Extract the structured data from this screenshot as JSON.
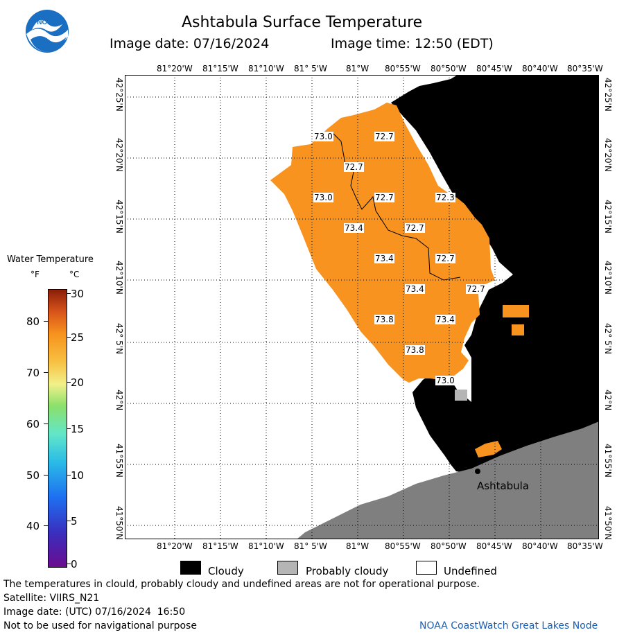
{
  "header": {
    "title": "Ashtabula Surface Temperature",
    "date_label": "Image date: 07/16/2024",
    "time_label": "Image time: 12:50 (EDT)"
  },
  "logo": {
    "text": "NOAA",
    "color": "#1a6fc2"
  },
  "map": {
    "lon_labels": [
      "81°20'W",
      "81°15'W",
      "81°10'W",
      "81° 5'W",
      "81°W",
      "80°55'W",
      "80°50'W",
      "80°45'W",
      "80°40'W",
      "80°35'W"
    ],
    "lat_labels": [
      "42°25'N",
      "42°20'N",
      "42°15'N",
      "42°10'N",
      "42° 5'N",
      "42°N",
      "41°55'N",
      "41°50'N"
    ],
    "temp_labels": [
      "73.0",
      "72.7",
      "72.7",
      "73.0",
      "72.7",
      "72.3",
      "73.4",
      "72.7",
      "73.4",
      "72.7",
      "73.4",
      "72.7",
      "73.8",
      "73.4",
      "73.8",
      "73.0"
    ],
    "city_label": "Ashtabula",
    "colors": {
      "water": "#f7931e",
      "cloud": "#000000",
      "land": "#7f7f7f",
      "probably_cloudy": "#b5b5b5"
    }
  },
  "colorbar": {
    "title": "Water Temperature",
    "unit_f": "°F",
    "unit_c": "°C",
    "f_ticks": [
      "80",
      "70",
      "60",
      "50",
      "40"
    ],
    "c_ticks": [
      "30",
      "25",
      "20",
      "15",
      "10",
      "5",
      "0"
    ]
  },
  "legend": {
    "cloudy": "Cloudy",
    "probably_cloudy": "Probably cloudy",
    "undefined": "Undefined"
  },
  "footer": {
    "disclaimer": "The temperatures in clould, probably cloudy and undefined areas are not for operational purpose.",
    "satellite": "Satellite: VIIRS_N21",
    "utc_date": "Image date: (UTC) 07/16/2024  16:50",
    "navigation": "Not to be used for navigational purpose",
    "credit": "NOAA CoastWatch Great Lakes Node"
  }
}
